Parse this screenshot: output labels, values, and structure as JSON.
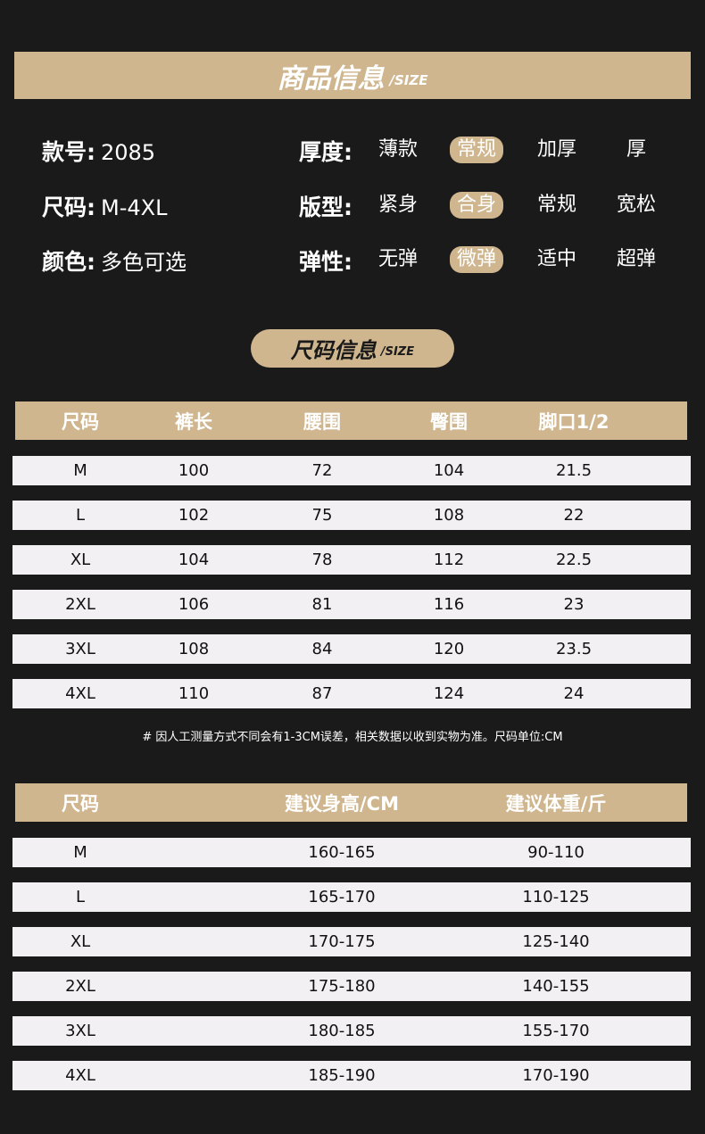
{
  "header": {
    "title": "商品信息",
    "subtitle": "/SIZE"
  },
  "info": {
    "left": [
      {
        "label": "款号:",
        "value": "2085"
      },
      {
        "label": "尺码:",
        "value": "M-4XL"
      },
      {
        "label": "颜色:",
        "value": "多色可选"
      }
    ],
    "right": [
      {
        "label": "厚度:",
        "options": [
          "薄款",
          "常规",
          "加厚",
          "厚"
        ],
        "selected": 1
      },
      {
        "label": "版型:",
        "options": [
          "紧身",
          "合身",
          "常规",
          "宽松"
        ],
        "selected": 1
      },
      {
        "label": "弹性:",
        "options": [
          "无弹",
          "微弹",
          "适中",
          "超弹"
        ],
        "selected": 1
      }
    ],
    "accent_color": "#cfb68e"
  },
  "size_section": {
    "title": "尺码信息",
    "subtitle": "/SIZE"
  },
  "table1": {
    "headers": [
      "尺码",
      "裤长",
      "腰围",
      "臀围",
      "脚口1/2"
    ],
    "rows": [
      [
        "M",
        "100",
        "72",
        "104",
        "21.5"
      ],
      [
        "L",
        "102",
        "75",
        "108",
        "22"
      ],
      [
        "XL",
        "104",
        "78",
        "112",
        "22.5"
      ],
      [
        "2XL",
        "106",
        "81",
        "116",
        "23"
      ],
      [
        "3XL",
        "108",
        "84",
        "120",
        "23.5"
      ],
      [
        "4XL",
        "110",
        "87",
        "124",
        "24"
      ]
    ]
  },
  "note": "# 因人工测量方式不同会有1-3CM误差，相关数据以收到实物为准。尺码单位:CM",
  "table2": {
    "headers": [
      "尺码",
      "建议身高/CM",
      "建议体重/斤"
    ],
    "rows": [
      [
        "M",
        "160-165",
        "90-110"
      ],
      [
        "L",
        "165-170",
        "110-125"
      ],
      [
        "XL",
        "170-175",
        "125-140"
      ],
      [
        "2XL",
        "175-180",
        "140-155"
      ],
      [
        "3XL",
        "180-185",
        "155-170"
      ],
      [
        "4XL",
        "185-190",
        "170-190"
      ]
    ]
  }
}
